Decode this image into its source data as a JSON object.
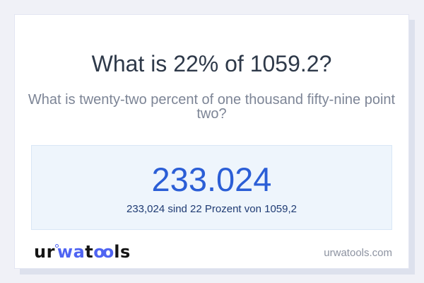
{
  "header": {
    "title": "What is 22% of 1059.2?",
    "subtitle": "What is twenty-two percent of one thousand fifty-nine point two?"
  },
  "result": {
    "value": "233.024",
    "description": "233,024 sind 22 Prozent von 1059,2"
  },
  "footer": {
    "logo": {
      "seg1": "ur",
      "seg2": "wa",
      "seg3": "t",
      "seg4": "oo",
      "seg5": "ls"
    },
    "website": "urwatools.com"
  },
  "colors": {
    "page_background": "#f0f1f7",
    "card_background": "#ffffff",
    "card_border": "#e3e6f2",
    "card_shadow": "#dde1ed",
    "title_text": "#2e3949",
    "subtitle_text": "#7d8596",
    "result_box_background": "#eef5fc",
    "result_box_border": "#d9e7f6",
    "result_value_text": "#2b5ed6",
    "result_description_text": "#1f3b73",
    "logo_dark": "#151515",
    "logo_accent": "#4f64f2",
    "website_text": "#8d93a1"
  }
}
